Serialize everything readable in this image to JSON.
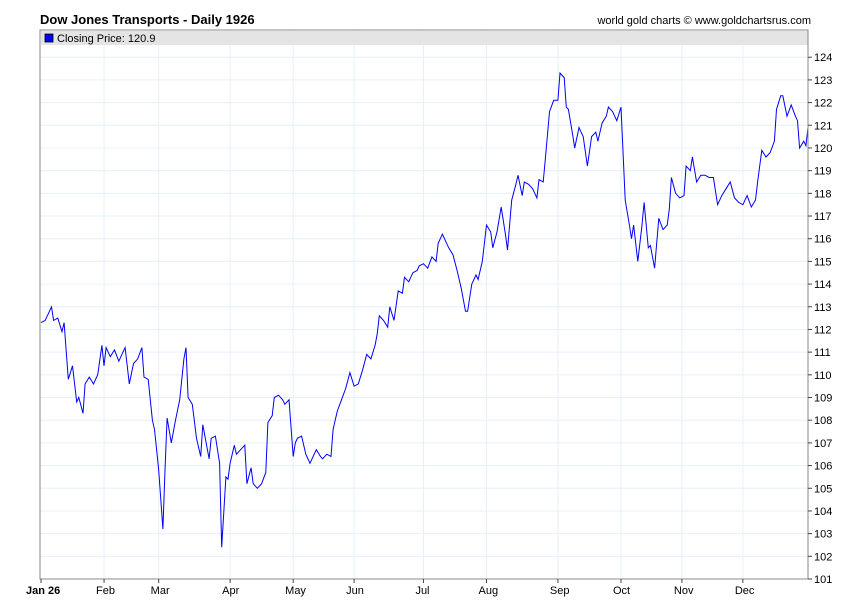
{
  "header": {
    "title": "Dow Jones Transports - Daily 1926",
    "credit": "world gold charts © www.goldchartsrus.com"
  },
  "chart_data": {
    "type": "line",
    "title": "Dow Jones Transports - Daily 1926",
    "xlabel": "",
    "ylabel": "",
    "legend": {
      "label": "Closing Price: 120.9",
      "placement": "top-left",
      "color": "#0000ff"
    },
    "ylim": [
      101,
      125.2
    ],
    "xlim_days": [
      0,
      365
    ],
    "yticks": [
      101,
      102,
      103,
      104,
      105,
      106,
      107,
      108,
      109,
      110,
      111,
      112,
      113,
      114,
      115,
      116,
      117,
      118,
      119,
      120,
      121,
      122,
      123,
      124
    ],
    "xticks": [
      {
        "label": "Jan 26",
        "day": 0
      },
      {
        "label": "Feb",
        "day": 30
      },
      {
        "label": "Mar",
        "day": 56
      },
      {
        "label": "Apr",
        "day": 90
      },
      {
        "label": "May",
        "day": 120
      },
      {
        "label": "Jun",
        "day": 149
      },
      {
        "label": "Jul",
        "day": 182
      },
      {
        "label": "Aug",
        "day": 212
      },
      {
        "label": "Sep",
        "day": 246
      },
      {
        "label": "Oct",
        "day": 276
      },
      {
        "label": "Nov",
        "day": 305
      },
      {
        "label": "Dec",
        "day": 334
      }
    ],
    "grid": true,
    "series": [
      {
        "name": "Closing Price",
        "color": "#0000ff",
        "x": [
          0,
          2,
          5,
          6,
          8,
          10,
          11,
          13,
          15,
          17,
          18,
          20,
          21,
          23,
          25,
          27,
          29,
          30,
          31,
          33,
          35,
          37,
          39,
          40,
          42,
          44,
          46,
          48,
          49,
          51,
          53,
          54,
          56,
          58,
          59,
          60,
          62,
          64,
          66,
          68,
          69,
          70,
          72,
          74,
          76,
          77,
          80,
          81,
          83,
          85,
          86,
          88,
          89,
          90,
          92,
          93,
          95,
          97,
          98,
          100,
          101,
          103,
          105,
          107,
          108,
          110,
          111,
          113,
          115,
          116,
          118,
          120,
          121,
          122,
          124,
          126,
          128,
          130,
          131,
          133,
          134,
          136,
          138,
          139,
          141,
          143,
          145,
          147,
          149,
          151,
          153,
          155,
          157,
          159,
          160,
          161,
          163,
          165,
          166,
          168,
          170,
          172,
          173,
          175,
          177,
          179,
          180,
          182,
          184,
          186,
          188,
          189,
          191,
          192,
          194,
          196,
          198,
          200,
          202,
          203,
          205,
          207,
          208,
          210,
          212,
          214,
          215,
          217,
          219,
          221,
          222,
          224,
          226,
          227,
          229,
          230,
          232,
          234,
          236,
          237,
          239,
          240,
          242,
          244,
          246,
          247,
          249,
          250,
          251,
          253,
          254,
          256,
          258,
          260,
          262,
          264,
          265,
          267,
          269,
          270,
          272,
          274,
          276,
          278,
          280,
          281,
          282,
          284,
          286,
          287,
          289,
          290,
          292,
          294,
          296,
          298,
          299,
          300,
          302,
          304,
          306,
          307,
          309,
          310,
          312,
          314,
          316,
          318,
          320,
          322,
          324,
          326,
          328,
          330,
          332,
          334,
          336,
          338,
          340,
          341,
          343,
          345,
          347,
          349,
          350,
          352,
          353,
          355,
          357,
          359,
          360,
          361,
          363,
          364,
          365
        ],
        "values": [
          112.3,
          112.4,
          113.0,
          112.4,
          112.5,
          111.9,
          112.3,
          109.8,
          110.4,
          108.8,
          109.0,
          108.3,
          109.6,
          109.9,
          109.6,
          110.0,
          111.3,
          110.4,
          111.2,
          110.8,
          111.1,
          110.6,
          111.0,
          111.2,
          109.6,
          110.5,
          110.7,
          111.2,
          109.9,
          109.8,
          108.0,
          107.6,
          105.8,
          103.2,
          105.8,
          108.1,
          107.0,
          108.0,
          108.9,
          110.7,
          111.2,
          109.0,
          108.7,
          107.2,
          106.4,
          107.8,
          106.3,
          107.2,
          107.3,
          106.1,
          102.4,
          105.5,
          105.4,
          106.1,
          106.9,
          106.5,
          106.7,
          106.9,
          105.2,
          105.9,
          105.2,
          105.0,
          105.2,
          105.7,
          107.9,
          108.2,
          109.0,
          109.1,
          108.9,
          108.7,
          108.9,
          106.4,
          107.0,
          107.2,
          107.3,
          106.5,
          106.1,
          106.5,
          106.7,
          106.4,
          106.3,
          106.5,
          106.4,
          107.6,
          108.4,
          108.9,
          109.4,
          110.1,
          109.5,
          109.6,
          110.2,
          110.9,
          110.7,
          111.3,
          111.8,
          112.6,
          112.4,
          112.1,
          113.0,
          112.4,
          113.7,
          113.6,
          114.3,
          114.1,
          114.5,
          114.6,
          114.8,
          114.9,
          114.7,
          115.2,
          115.0,
          115.8,
          116.2,
          116.0,
          115.6,
          115.3,
          114.6,
          113.8,
          112.8,
          112.8,
          114.0,
          114.4,
          114.2,
          115.0,
          116.6,
          116.3,
          115.6,
          116.3,
          117.4,
          116.2,
          115.5,
          117.7,
          118.4,
          118.8,
          117.9,
          118.5,
          118.4,
          118.2,
          117.8,
          118.6,
          118.5,
          119.5,
          121.6,
          122.1,
          122.1,
          123.3,
          123.1,
          121.8,
          121.7,
          120.6,
          120.0,
          120.9,
          120.5,
          119.2,
          120.5,
          120.7,
          120.3,
          121.1,
          121.4,
          121.8,
          121.6,
          121.2,
          121.8,
          117.7,
          116.6,
          116.0,
          116.6,
          115.0,
          116.6,
          117.6,
          115.6,
          115.7,
          114.7,
          116.9,
          116.4,
          116.6,
          117.3,
          118.7,
          118.0,
          117.8,
          117.9,
          119.2,
          119.0,
          119.6,
          118.5,
          118.8,
          118.8,
          118.7,
          118.7,
          117.5,
          117.9,
          118.2,
          118.5,
          117.8,
          117.6,
          117.5,
          117.9,
          117.4,
          117.7,
          118.5,
          119.9,
          119.6,
          119.8,
          120.3,
          121.7,
          122.3,
          122.3,
          121.4,
          121.9,
          121.4,
          121.2,
          120.0,
          120.3,
          120.1,
          120.9
        ]
      }
    ]
  }
}
